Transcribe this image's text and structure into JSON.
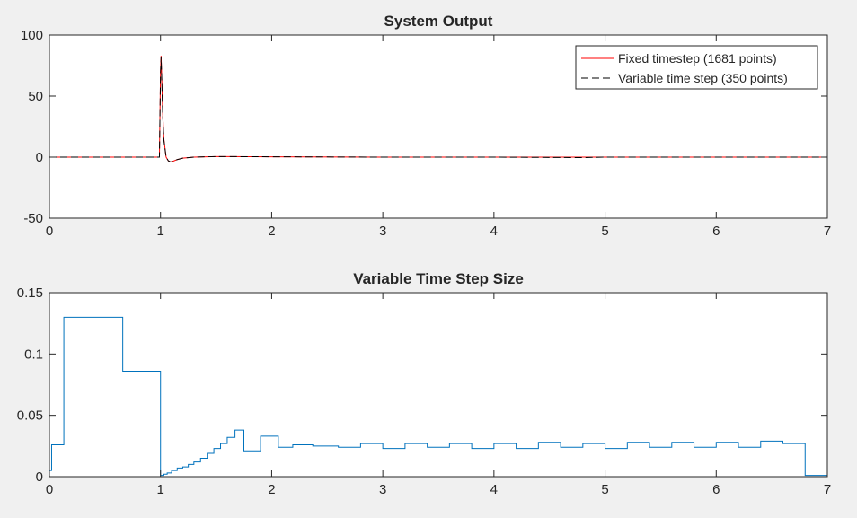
{
  "colors": {
    "background": "#f0f0f0",
    "axes_bg": "#ffffff",
    "axis": "#262626",
    "fixed_series": "#ff0000",
    "variable_series": "#000000",
    "step_series": "#0072bd"
  },
  "chart_data": [
    {
      "type": "line",
      "title": "System Output",
      "xlabel": "",
      "ylabel": "",
      "xlim": [
        0,
        7
      ],
      "ylim": [
        -50,
        100
      ],
      "xticks": [
        "0",
        "1",
        "2",
        "3",
        "4",
        "5",
        "6",
        "7"
      ],
      "yticks": [
        "-50",
        "0",
        "50",
        "100"
      ],
      "grid": false,
      "legend_position": "top-right",
      "series": [
        {
          "name": "Fixed timestep (1681 points)",
          "style": "solid",
          "color": "#ff0000",
          "x": [
            0,
            0.99,
            1.0,
            1.005,
            1.01,
            1.02,
            1.03,
            1.05,
            1.07,
            1.09,
            1.11,
            1.15,
            1.2,
            1.3,
            1.5,
            2.0,
            3.0,
            4.0,
            4.8,
            5.0,
            6.0,
            7.0
          ],
          "y": [
            0,
            0,
            70,
            83,
            68,
            35,
            15,
            0,
            -3,
            -4,
            -3.5,
            -2,
            -0.8,
            0,
            0.5,
            0.3,
            0,
            0,
            0,
            0,
            0,
            0
          ]
        },
        {
          "name": "Variable time step (350 points)",
          "style": "dashed",
          "color": "#000000",
          "x": [
            0,
            0.99,
            1.0,
            1.005,
            1.01,
            1.02,
            1.03,
            1.05,
            1.07,
            1.09,
            1.11,
            1.15,
            1.2,
            1.3,
            1.5,
            2.0,
            3.0,
            4.0,
            4.8,
            5.0,
            6.0,
            7.0
          ],
          "y": [
            0,
            0,
            68,
            82,
            67,
            34,
            14,
            0,
            -3,
            -4,
            -3.5,
            -2,
            -0.8,
            0,
            0.5,
            0.3,
            0,
            0,
            -0.4,
            0,
            0,
            0
          ]
        }
      ]
    },
    {
      "type": "line",
      "title": "Variable Time Step Size",
      "xlabel": "",
      "ylabel": "",
      "xlim": [
        0,
        7
      ],
      "ylim": [
        0,
        0.15
      ],
      "xticks": [
        "0",
        "1",
        "2",
        "3",
        "4",
        "5",
        "6",
        "7"
      ],
      "yticks": [
        "0",
        "0.05",
        "0.1",
        "0.15"
      ],
      "grid": false,
      "series": [
        {
          "style": "stairs",
          "color": "#0072bd",
          "x": [
            0,
            0.02,
            0.13,
            0.66,
            1.0,
            1.03,
            1.06,
            1.1,
            1.15,
            1.2,
            1.25,
            1.3,
            1.36,
            1.42,
            1.48,
            1.54,
            1.6,
            1.67,
            1.75,
            1.9,
            2.06,
            2.19,
            2.37,
            2.6,
            2.8,
            3.0,
            3.2,
            3.4,
            3.6,
            3.8,
            4.0,
            4.2,
            4.4,
            4.6,
            4.8,
            5.0,
            5.2,
            5.4,
            5.6,
            5.8,
            6.0,
            6.2,
            6.4,
            6.6,
            6.8,
            7.0
          ],
          "y": [
            0.005,
            0.026,
            0.13,
            0.086,
            0.001,
            0.002,
            0.003,
            0.005,
            0.007,
            0.008,
            0.01,
            0.012,
            0.015,
            0.019,
            0.023,
            0.027,
            0.032,
            0.038,
            0.021,
            0.033,
            0.024,
            0.026,
            0.025,
            0.024,
            0.027,
            0.023,
            0.027,
            0.024,
            0.027,
            0.023,
            0.027,
            0.023,
            0.028,
            0.024,
            0.027,
            0.023,
            0.028,
            0.024,
            0.028,
            0.024,
            0.028,
            0.024,
            0.029,
            0.027,
            0.001,
            0.001
          ]
        }
      ]
    }
  ]
}
